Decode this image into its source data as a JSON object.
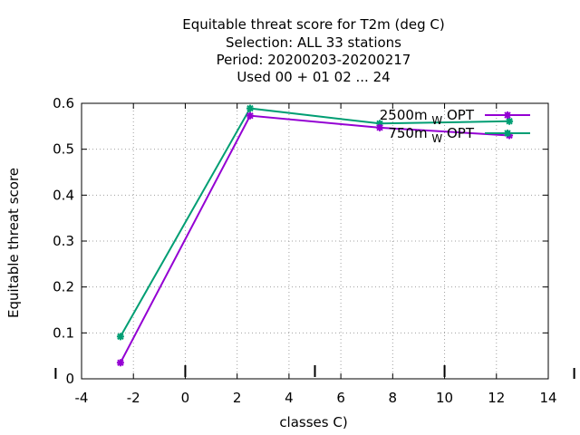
{
  "chart_data": {
    "type": "line",
    "title_lines": [
      "Equitable threat score  for T2m (deg C)",
      "Selection: ALL     33 stations",
      "Period: 20200203-20200217",
      "Used  00 + 01 02 ... 24"
    ],
    "xlabel": "classes C)",
    "ylabel": "Equitable threat score",
    "xlim": [
      -4,
      14
    ],
    "ylim": [
      0,
      0.6
    ],
    "xticks": [
      -4,
      -2,
      0,
      2,
      4,
      6,
      8,
      10,
      12,
      14
    ],
    "yticks": [
      0,
      0.1,
      0.2,
      0.3,
      0.4,
      0.5,
      0.6
    ],
    "ytick_labels": [
      "0",
      "0.1",
      "0.2",
      "0.3",
      "0.4",
      "0.5",
      "0.6"
    ],
    "grid": true,
    "legend_position": "top-right",
    "x": [
      -2.5,
      2.5,
      7.5,
      12.5
    ],
    "series": [
      {
        "name_main": "2500m",
        "name_sub": "W",
        "name_tail": "OPT",
        "color": "#9400d3",
        "values": [
          0.035,
          0.573,
          0.547,
          0.53
        ]
      },
      {
        "name_main": "750m",
        "name_sub": "W",
        "name_tail": "OPT",
        "color": "#009e73",
        "values": [
          0.092,
          0.589,
          0.556,
          0.561
        ]
      }
    ]
  }
}
